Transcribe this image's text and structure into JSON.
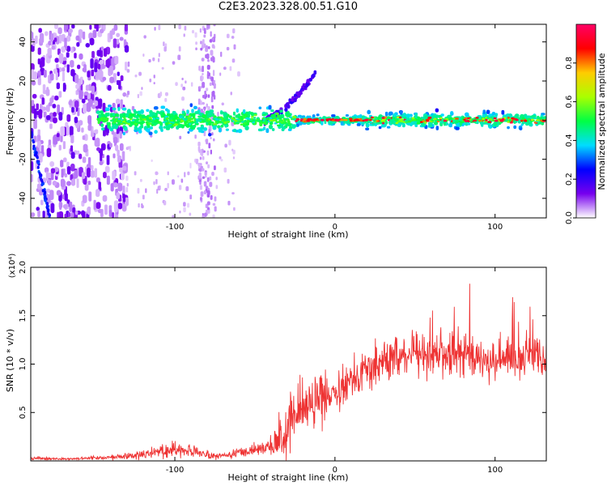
{
  "title": "C2E3.2023.328.00.51.G10",
  "chart_data": [
    {
      "type": "heatmap",
      "xlabel": "Height of straight line (km)",
      "ylabel": "Frequency (Hz)",
      "xlim": [
        -190,
        132
      ],
      "ylim": [
        -50,
        49
      ],
      "xticks": [
        -100,
        0,
        100
      ],
      "xtick_labels": [
        "-100",
        "0",
        "100"
      ],
      "yticks": [
        -40,
        -20,
        0,
        20,
        40
      ],
      "ytick_labels": [
        "-40",
        "-20",
        "0",
        "20",
        "40"
      ],
      "colorbar": {
        "label": "Normalized spectral amplitude",
        "range": [
          0,
          1
        ],
        "ticks": [
          0.0,
          0.2,
          0.4,
          0.6,
          0.8
        ],
        "tick_labels": [
          "0.0",
          "0.2",
          "0.4",
          "0.6",
          "0.8"
        ],
        "colors": [
          "#ffffff",
          "#7700ee",
          "#0000ff",
          "#00ddff",
          "#00ff44",
          "#aaff00",
          "#ffcc00",
          "#ff0000",
          "#ff0066"
        ]
      },
      "features": {
        "central_band_hz": 0,
        "broadband_noise_x_range": [
          -190,
          -130
        ],
        "vertical_streak_x": [
          -85,
          -75
        ],
        "rising_arc": {
          "x": [
            -45,
            -12
          ],
          "y": [
            0,
            25
          ]
        }
      }
    },
    {
      "type": "line",
      "xlabel": "Height of straight line (km)",
      "ylabel": "SNR (10 * v/v)",
      "scale_label": "(x10⁴)",
      "xlim": [
        -190,
        132
      ],
      "ylim": [
        0,
        2.0
      ],
      "xticks": [
        -100,
        0,
        100
      ],
      "xtick_labels": [
        "-100",
        "0",
        "100"
      ],
      "yticks": [
        0.5,
        1.0,
        1.5,
        2.0
      ],
      "ytick_labels": [
        "0.5",
        "1.0",
        "1.5",
        "2.0"
      ],
      "line_color": "#ee3333",
      "series": [
        {
          "x": [
            -190,
            -170,
            -150,
            -130,
            -120,
            -110,
            -100,
            -90,
            -80,
            -70,
            -60,
            -50,
            -40,
            -30,
            -25,
            -20,
            -15,
            -10,
            -5,
            0,
            5,
            10,
            15,
            20,
            25,
            30,
            40,
            50,
            60,
            70,
            80,
            90,
            100,
            110,
            120,
            132
          ],
          "y": [
            0.03,
            0.02,
            0.03,
            0.05,
            0.07,
            0.1,
            0.12,
            0.1,
            0.06,
            0.05,
            0.08,
            0.12,
            0.16,
            0.28,
            0.5,
            0.55,
            0.6,
            0.62,
            0.65,
            0.72,
            0.78,
            0.85,
            0.9,
            0.95,
            0.98,
            1.02,
            1.08,
            1.12,
            1.12,
            1.1,
            1.08,
            1.05,
            1.05,
            1.05,
            1.08,
            1.05
          ]
        }
      ]
    }
  ]
}
